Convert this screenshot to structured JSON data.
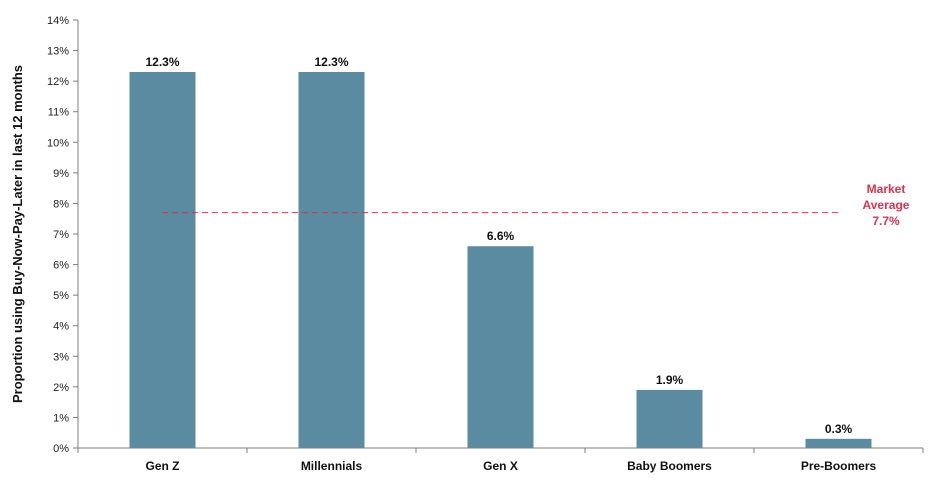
{
  "chart_data": {
    "type": "bar",
    "categories": [
      "Gen Z",
      "Millennials",
      "Gen X",
      "Baby Boomers",
      "Pre-Boomers"
    ],
    "values": [
      12.3,
      12.3,
      6.6,
      1.9,
      0.3
    ],
    "value_labels": [
      "12.3%",
      "12.3%",
      "6.6%",
      "1.9%",
      "0.3%"
    ],
    "ylabel": "Proportion using Buy-Now-Pay-Later in last 12 months",
    "ylim": [
      0,
      14
    ],
    "yticks": [
      0,
      1,
      2,
      3,
      4,
      5,
      6,
      7,
      8,
      9,
      10,
      11,
      12,
      13,
      14
    ],
    "ytick_labels": [
      "0%",
      "1%",
      "2%",
      "3%",
      "4%",
      "5%",
      "6%",
      "7%",
      "8%",
      "9%",
      "10%",
      "11%",
      "12%",
      "13%",
      "14%"
    ],
    "bar_color": "#5b8ba0",
    "grid": false,
    "reference_line": {
      "value": 7.7,
      "label_lines": [
        "Market",
        "Average",
        "7.7%"
      ],
      "color": "#d9344f",
      "style": "dashed"
    }
  }
}
